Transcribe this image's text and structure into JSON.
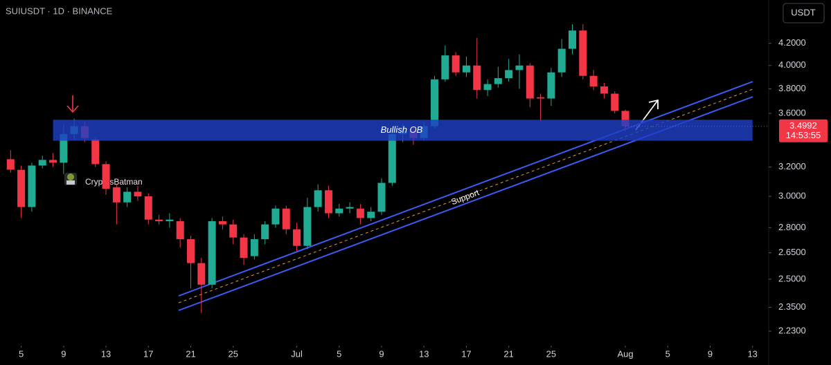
{
  "chart_data": {
    "type": "candlestick",
    "title": "SUIUSDT · 1D · BINANCE",
    "currency": "USDT",
    "watermark": "CryptosBatman",
    "log_scale": true,
    "grid": false,
    "up_color": "#22ab94",
    "down_color": "#f23645",
    "x": [
      "06-04",
      "06-05",
      "06-06",
      "06-07",
      "06-08",
      "06-09",
      "06-10",
      "06-11",
      "06-12",
      "06-13",
      "06-14",
      "06-15",
      "06-16",
      "06-17",
      "06-18",
      "06-19",
      "06-20",
      "06-21",
      "06-22",
      "06-23",
      "06-24",
      "06-25",
      "06-26",
      "06-27",
      "06-28",
      "06-29",
      "06-30",
      "07-01",
      "07-02",
      "07-03",
      "07-04",
      "07-05",
      "07-06",
      "07-07",
      "07-08",
      "07-09",
      "07-10",
      "07-11",
      "07-12",
      "07-13",
      "07-14",
      "07-15",
      "07-16",
      "07-17",
      "07-18",
      "07-19",
      "07-20",
      "07-21",
      "07-22",
      "07-23",
      "07-24",
      "07-25",
      "07-26",
      "07-27",
      "07-28",
      "07-29",
      "07-30",
      "07-31",
      "08-01"
    ],
    "open": [
      3.255,
      3.18,
      2.93,
      3.21,
      3.25,
      3.23,
      3.44,
      3.5,
      3.4,
      3.22,
      3.06,
      2.96,
      3.03,
      3.0,
      2.85,
      2.84,
      2.84,
      2.73,
      2.59,
      2.47,
      2.84,
      2.82,
      2.74,
      2.63,
      2.73,
      2.82,
      2.92,
      2.79,
      2.69,
      2.93,
      3.04,
      2.89,
      2.92,
      2.92,
      2.86,
      2.9,
      3.09,
      3.44,
      3.46,
      3.41,
      3.5,
      3.88,
      4.09,
      3.94,
      4.0,
      3.79,
      3.84,
      3.89,
      3.96,
      4.0,
      3.73,
      3.72,
      3.94,
      4.15,
      4.32,
      3.91,
      3.82,
      3.76,
      3.62
    ],
    "high": [
      3.32,
      3.21,
      3.23,
      3.28,
      3.3,
      3.51,
      3.56,
      3.54,
      3.42,
      3.24,
      3.08,
      3.06,
      3.07,
      3.02,
      2.88,
      2.89,
      2.86,
      2.75,
      2.62,
      2.86,
      2.87,
      2.85,
      2.76,
      2.76,
      2.84,
      2.94,
      2.94,
      2.83,
      2.99,
      3.08,
      3.07,
      2.95,
      2.96,
      2.95,
      2.93,
      3.12,
      3.5,
      3.52,
      3.49,
      3.53,
      3.91,
      4.18,
      4.12,
      4.08,
      4.25,
      3.88,
      3.99,
      4.06,
      4.1,
      4.02,
      3.76,
      3.98,
      4.24,
      4.38,
      4.38,
      3.96,
      3.85,
      3.78,
      3.63
    ],
    "low": [
      3.16,
      2.86,
      2.9,
      3.19,
      3.2,
      3.15,
      3.4,
      3.38,
      3.2,
      3.01,
      2.82,
      2.93,
      2.97,
      2.82,
      2.82,
      2.8,
      2.68,
      2.45,
      2.32,
      2.45,
      2.79,
      2.7,
      2.58,
      2.61,
      2.7,
      2.8,
      2.76,
      2.66,
      2.67,
      2.9,
      2.86,
      2.87,
      2.89,
      2.82,
      2.84,
      2.88,
      3.07,
      3.38,
      3.36,
      3.39,
      3.48,
      3.86,
      3.91,
      3.9,
      3.72,
      3.74,
      3.81,
      3.86,
      3.8,
      3.65,
      3.53,
      3.66,
      3.9,
      4.1,
      3.88,
      3.79,
      3.72,
      3.6,
      3.46
    ],
    "close": [
      3.181,
      2.93,
      3.21,
      3.25,
      3.23,
      3.44,
      3.5,
      3.41,
      3.22,
      3.05,
      2.96,
      3.03,
      3.0,
      2.85,
      2.84,
      2.85,
      2.73,
      2.59,
      2.47,
      2.84,
      2.82,
      2.74,
      2.62,
      2.73,
      2.82,
      2.92,
      2.79,
      2.69,
      2.93,
      3.04,
      2.89,
      2.92,
      2.93,
      2.86,
      2.9,
      3.09,
      3.44,
      3.46,
      3.41,
      3.5,
      3.88,
      4.09,
      3.94,
      4.0,
      3.79,
      3.84,
      3.89,
      3.96,
      4.0,
      3.72,
      3.72,
      3.94,
      4.15,
      4.32,
      3.91,
      3.82,
      3.76,
      3.62,
      3.4992
    ],
    "countdown": "14:53:55",
    "xlim": [
      "06-03",
      "08-14"
    ],
    "ylim": [
      2.16,
      4.62
    ],
    "xticks": [
      {
        "value": "06-05",
        "label": "5"
      },
      {
        "value": "06-09",
        "label": "9"
      },
      {
        "value": "06-13",
        "label": "13"
      },
      {
        "value": "06-17",
        "label": "17"
      },
      {
        "value": "06-21",
        "label": "21"
      },
      {
        "value": "06-25",
        "label": "25"
      },
      {
        "value": "07-01",
        "label": "Jul"
      },
      {
        "value": "07-05",
        "label": "5"
      },
      {
        "value": "07-09",
        "label": "9"
      },
      {
        "value": "07-13",
        "label": "13"
      },
      {
        "value": "07-17",
        "label": "17"
      },
      {
        "value": "07-21",
        "label": "21"
      },
      {
        "value": "07-25",
        "label": "25"
      },
      {
        "value": "08-01",
        "label": "Aug"
      },
      {
        "value": "08-05",
        "label": "5"
      },
      {
        "value": "08-09",
        "label": "9"
      },
      {
        "value": "08-13",
        "label": "13"
      }
    ],
    "yticks": [
      {
        "value": 4.2,
        "label": "4.2000"
      },
      {
        "value": 4.0,
        "label": "4.0000"
      },
      {
        "value": 3.8,
        "label": "3.8000"
      },
      {
        "value": 3.6,
        "label": "3.6000"
      },
      {
        "value": 3.2,
        "label": "3.2000"
      },
      {
        "value": 3.0,
        "label": "3.0000"
      },
      {
        "value": 2.8,
        "label": "2.8000"
      },
      {
        "value": 2.65,
        "label": "2.6500"
      },
      {
        "value": 2.5,
        "label": "2.5000"
      },
      {
        "value": 2.35,
        "label": "2.3500"
      },
      {
        "value": 2.23,
        "label": "2.2300"
      }
    ],
    "zones": [
      {
        "label": "Bullish OB",
        "top": 3.55,
        "bottom": 3.39,
        "start": "06-08",
        "end": "08-13",
        "color": "#1f3fc4"
      }
    ],
    "support_label": "Support"
  }
}
